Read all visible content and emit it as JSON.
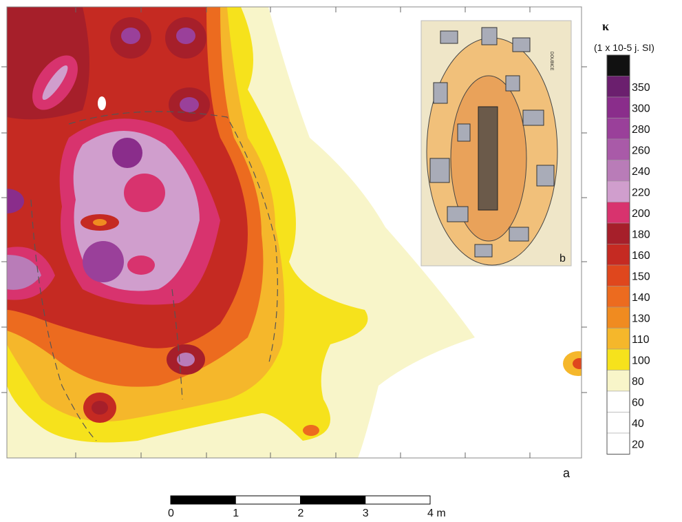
{
  "panels": {
    "map_label": "a",
    "inset_label": "b",
    "inset_text": "DOUBICE"
  },
  "legend": {
    "symbol": "κ",
    "unit": "(1 x 10-5 j. SI)",
    "top_color": "#111111",
    "levels": [
      {
        "label": "350",
        "color": "#6b1f6e"
      },
      {
        "label": "300",
        "color": "#8a2d8b"
      },
      {
        "label": "280",
        "color": "#9a409a"
      },
      {
        "label": "260",
        "color": "#a95aa8"
      },
      {
        "label": "240",
        "color": "#b97cb8"
      },
      {
        "label": "220",
        "color": "#d09ecd"
      },
      {
        "label": "200",
        "color": "#d8336e"
      },
      {
        "label": "180",
        "color": "#a61f2a"
      },
      {
        "label": "160",
        "color": "#c52a22"
      },
      {
        "label": "150",
        "color": "#df471d"
      },
      {
        "label": "140",
        "color": "#ec6b1f"
      },
      {
        "label": "130",
        "color": "#f08b20"
      },
      {
        "label": "110",
        "color": "#f5b72b"
      },
      {
        "label": "100",
        "color": "#f6e21c"
      },
      {
        "label": "80",
        "color": "#f8f5c9"
      },
      {
        "label": "60",
        "color": "#ffffff"
      },
      {
        "label": "40",
        "color": "#ffffff"
      },
      {
        "label": "20",
        "color": "#ffffff"
      }
    ]
  },
  "scale_bar": {
    "labels": [
      "0",
      "1",
      "2",
      "3",
      "4 m"
    ]
  }
}
